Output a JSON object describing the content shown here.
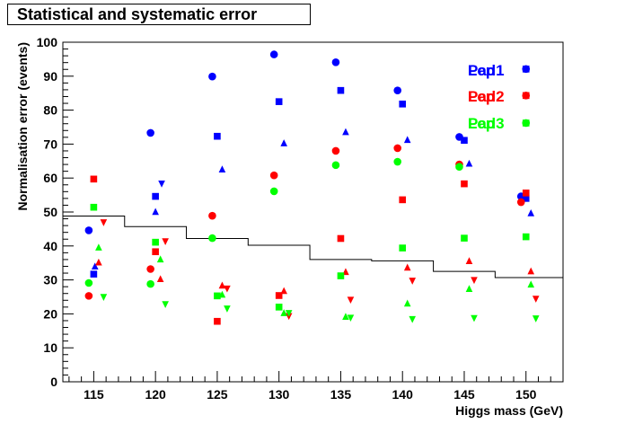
{
  "title": "Statistical and systematic error",
  "chart_data": {
    "type": "scatter",
    "xlabel": "Higgs mass (GeV)",
    "ylabel": "Normalisation error (events)",
    "xlim": [
      112.5,
      153
    ],
    "ylim": [
      0,
      100
    ],
    "x_ticks": [
      "115",
      "120",
      "125",
      "130",
      "135",
      "140",
      "145",
      "150"
    ],
    "y_ticks": [
      "0",
      "10",
      "20",
      "30",
      "40",
      "50",
      "60",
      "70",
      "80",
      "90",
      "100"
    ],
    "grid": false,
    "legend": {
      "placement": "top-right",
      "entries": [
        {
          "label": "Pad1",
          "color": "#0000ff"
        },
        {
          "label": "Pad2",
          "color": "#ff0000"
        },
        {
          "label": "Pad3",
          "color": "#00ff00"
        }
      ],
      "overprinted_labels": [
        "Lep",
        "Lep",
        "Lep"
      ]
    },
    "limit_line": {
      "name": "step",
      "color": "#000000",
      "points": [
        {
          "x_from": 112.5,
          "x_to": 117.5,
          "y": 48.8
        },
        {
          "x_from": 117.5,
          "x_to": 122.5,
          "y": 45.7
        },
        {
          "x_from": 122.5,
          "x_to": 127.5,
          "y": 42.2
        },
        {
          "x_from": 127.5,
          "x_to": 132.5,
          "y": 40.2
        },
        {
          "x_from": 132.5,
          "x_to": 137.5,
          "y": 36.0
        },
        {
          "x_from": 137.5,
          "x_to": 142.5,
          "y": 35.6
        },
        {
          "x_from": 142.5,
          "x_to": 147.5,
          "y": 32.5
        },
        {
          "x_from": 147.5,
          "x_to": 153.0,
          "y": 30.7
        }
      ]
    },
    "series": [
      {
        "color": "#0000ff",
        "marker": "circle",
        "points": [
          [
            114.6,
            44.6
          ],
          [
            119.6,
            73.3
          ],
          [
            124.6,
            89.9
          ],
          [
            129.6,
            96.4
          ],
          [
            134.6,
            94.1
          ],
          [
            139.6,
            85.8
          ],
          [
            144.6,
            72.1
          ],
          [
            149.6,
            54.6
          ],
          [
            150.0,
            92.1
          ]
        ]
      },
      {
        "color": "#0000ff",
        "marker": "square",
        "points": [
          [
            115.0,
            31.7
          ],
          [
            120.0,
            54.6
          ],
          [
            125.0,
            72.3
          ],
          [
            130.0,
            82.5
          ],
          [
            135.0,
            85.8
          ],
          [
            140.0,
            81.8
          ],
          [
            145.0,
            71.1
          ],
          [
            150.0,
            54.0
          ],
          [
            150.0,
            92.1
          ]
        ]
      },
      {
        "color": "#0000ff",
        "marker": "triangle-up",
        "points": [
          [
            115.1,
            33.9
          ],
          [
            120.0,
            50.0
          ],
          [
            125.4,
            62.5
          ],
          [
            130.4,
            70.2
          ],
          [
            135.4,
            73.5
          ],
          [
            140.4,
            71.2
          ],
          [
            145.4,
            64.2
          ],
          [
            150.4,
            49.6
          ]
        ]
      },
      {
        "color": "#0000ff",
        "marker": "triangle-down",
        "points": [
          [
            120.5,
            58.4
          ]
        ]
      },
      {
        "color": "#ff0000",
        "marker": "circle",
        "points": [
          [
            114.6,
            25.3
          ],
          [
            119.6,
            33.2
          ],
          [
            124.6,
            48.9
          ],
          [
            129.6,
            60.8
          ],
          [
            134.6,
            68.0
          ],
          [
            139.6,
            68.8
          ],
          [
            144.6,
            64.0
          ],
          [
            149.6,
            52.9
          ],
          [
            150.0,
            84.3
          ]
        ]
      },
      {
        "color": "#ff0000",
        "marker": "square",
        "points": [
          [
            115.0,
            59.7
          ],
          [
            120.0,
            38.3
          ],
          [
            125.0,
            17.8
          ],
          [
            130.0,
            25.4
          ],
          [
            135.0,
            42.2
          ],
          [
            140.0,
            53.6
          ],
          [
            145.0,
            58.3
          ],
          [
            150.0,
            55.6
          ],
          [
            150.0,
            84.3
          ]
        ]
      },
      {
        "color": "#ff0000",
        "marker": "triangle-up",
        "points": [
          [
            115.4,
            35.1
          ],
          [
            120.4,
            30.2
          ],
          [
            125.4,
            28.3
          ],
          [
            130.4,
            26.7
          ],
          [
            135.4,
            32.3
          ],
          [
            140.4,
            33.6
          ],
          [
            145.4,
            35.5
          ],
          [
            150.4,
            32.5
          ]
        ]
      },
      {
        "color": "#ff0000",
        "marker": "triangle-down",
        "points": [
          [
            115.8,
            47.0
          ],
          [
            120.8,
            41.4
          ],
          [
            125.8,
            27.5
          ],
          [
            130.8,
            19.4
          ],
          [
            135.8,
            24.2
          ],
          [
            140.8,
            29.8
          ],
          [
            145.8,
            30.0
          ],
          [
            150.8,
            24.5
          ]
        ]
      },
      {
        "color": "#00ff00",
        "marker": "circle",
        "points": [
          [
            114.6,
            29.1
          ],
          [
            119.6,
            28.8
          ],
          [
            124.6,
            42.3
          ],
          [
            129.6,
            56.1
          ],
          [
            134.6,
            63.8
          ],
          [
            139.6,
            64.8
          ],
          [
            144.6,
            63.3
          ],
          [
            150.0,
            76.2
          ]
        ]
      },
      {
        "color": "#00ff00",
        "marker": "square",
        "points": [
          [
            115.0,
            51.4
          ],
          [
            120.0,
            41.1
          ],
          [
            125.0,
            25.3
          ],
          [
            130.0,
            22.0
          ],
          [
            135.0,
            31.2
          ],
          [
            140.0,
            39.4
          ],
          [
            145.0,
            42.3
          ],
          [
            150.0,
            42.7
          ],
          [
            150.0,
            76.2
          ]
        ]
      },
      {
        "color": "#00ff00",
        "marker": "triangle-up",
        "points": [
          [
            115.4,
            39.5
          ],
          [
            120.4,
            36.0
          ],
          [
            125.4,
            25.6
          ],
          [
            130.4,
            20.2
          ],
          [
            135.4,
            19.1
          ],
          [
            140.4,
            23.0
          ],
          [
            145.4,
            27.3
          ],
          [
            150.4,
            28.6
          ]
        ]
      },
      {
        "color": "#00ff00",
        "marker": "triangle-down",
        "points": [
          [
            115.8,
            25.0
          ],
          [
            120.8,
            22.9
          ],
          [
            125.8,
            21.6
          ],
          [
            130.8,
            20.3
          ],
          [
            135.8,
            18.9
          ],
          [
            140.8,
            18.5
          ],
          [
            145.8,
            18.8
          ],
          [
            150.8,
            18.7
          ]
        ]
      }
    ]
  }
}
